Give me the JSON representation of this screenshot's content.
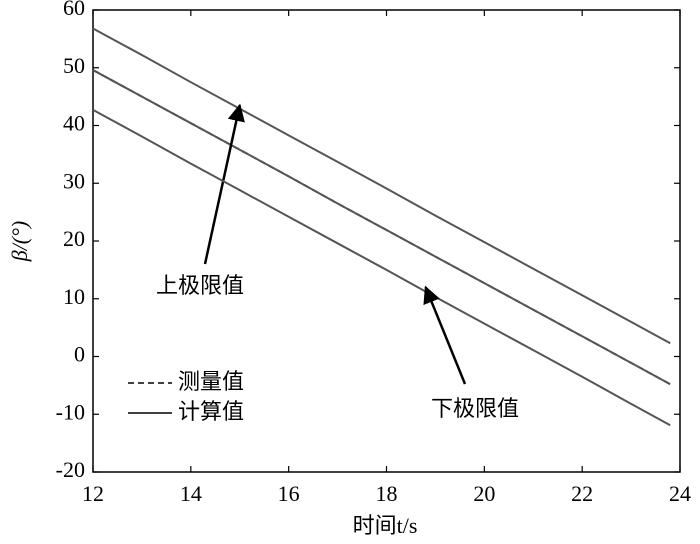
{
  "chart_data": {
    "type": "line",
    "x_label": "时间t/s",
    "y_label": "β/(°)",
    "x": [
      12,
      13,
      14,
      15,
      16,
      17,
      18,
      19,
      20,
      21,
      22,
      23,
      23.8
    ],
    "series": [
      {
        "name": "测量值",
        "color": "#555555",
        "dashed": true,
        "values": [
          49.6,
          45.0,
          40.4,
          35.8,
          31.2,
          26.5,
          21.9,
          17.3,
          12.7,
          8.1,
          3.5,
          -1.1,
          -4.8
        ]
      },
      {
        "name": "计算值",
        "color": "#555555",
        "dashed": false,
        "values": [
          49.6,
          45.0,
          40.4,
          35.8,
          31.2,
          26.5,
          21.9,
          17.3,
          12.7,
          8.1,
          3.5,
          -1.1,
          -4.8
        ]
      }
    ],
    "limits": [
      {
        "label": "上极限值",
        "color": "#555555",
        "arrow_xy": [
          15,
          43.5
        ],
        "values": [
          56.8,
          52.2,
          47.5,
          42.9,
          38.3,
          33.7,
          29.1,
          24.4,
          19.8,
          15.2,
          10.6,
          6.0,
          2.3
        ]
      },
      {
        "label": "下极限值",
        "color": "#555555",
        "arrow_xy": [
          18.8,
          12
        ],
        "values": [
          42.7,
          38.1,
          33.4,
          28.8,
          24.2,
          19.6,
          15.0,
          10.3,
          5.7,
          1.1,
          -3.5,
          -8.2,
          -11.9
        ]
      }
    ],
    "xlim": [
      12,
      24
    ],
    "xticks": [
      12,
      14,
      16,
      18,
      20,
      22,
      24
    ],
    "ylim": [
      -20,
      60
    ],
    "yticks": [
      -20,
      -10,
      0,
      10,
      20,
      30,
      40,
      50,
      60
    ]
  }
}
